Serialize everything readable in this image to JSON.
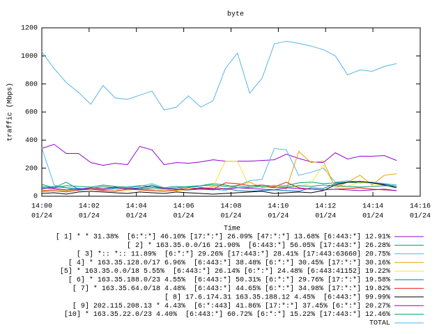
{
  "chart_data": {
    "type": "line",
    "title": "byte",
    "x_label": "Time",
    "y_label": "traffic (Mbps)",
    "xlim": [
      0,
      16
    ],
    "ylim": [
      0,
      1200
    ],
    "xticks": [
      {
        "value": 0,
        "label": "14:00"
      },
      {
        "value": 2,
        "label": "14:02"
      },
      {
        "value": 4,
        "label": "14:04"
      },
      {
        "value": 6,
        "label": "14:06"
      },
      {
        "value": 8,
        "label": "14:08"
      },
      {
        "value": 10,
        "label": "14:10"
      },
      {
        "value": 12,
        "label": "14:12"
      },
      {
        "value": 14,
        "label": "14:14"
      },
      {
        "value": 16,
        "label": "14:16"
      }
    ],
    "xtick_dates": [
      "01/24",
      "01/24",
      "01/24",
      "01/24",
      "01/24",
      "01/24",
      "01/24",
      "01/24",
      "01/24"
    ],
    "yticks": [
      0,
      200,
      400,
      600,
      800,
      1000,
      1200
    ],
    "grid": false,
    "x": [
      0,
      0.52,
      1.03,
      1.55,
      2.07,
      2.59,
      3.1,
      3.62,
      4.14,
      4.66,
      5.17,
      5.69,
      6.2,
      6.72,
      7.24,
      7.76,
      8.27,
      8.79,
      9.31,
      9.83,
      10.34,
      10.86,
      11.38,
      11.9,
      12.41,
      12.93,
      13.45,
      13.97,
      14.48,
      15.0
    ],
    "series": [
      {
        "name": "[ 1] * * 31.38%  [6:*:*] 46.10% [17:*:*] 26.09% [47:*:*] 13.68% [6:443:*] 12.91%",
        "color": "#9400d3",
        "values": [
          340,
          370,
          305,
          305,
          240,
          220,
          235,
          225,
          355,
          330,
          225,
          240,
          235,
          245,
          260,
          250,
          250,
          250,
          255,
          260,
          300,
          270,
          245,
          240,
          310,
          265,
          285,
          285,
          290,
          255
        ]
      },
      {
        "name": "[ 2] * 163.35.0.0/16 21.90%  [6:443:*] 56.05% [17:443:*] 26.28%",
        "color": "#009e73",
        "values": [
          85,
          60,
          100,
          50,
          55,
          70,
          60,
          60,
          55,
          80,
          55,
          60,
          70,
          75,
          90,
          80,
          60,
          60,
          80,
          70,
          75,
          95,
          100,
          90,
          95,
          100,
          95,
          100,
          90,
          80
        ]
      },
      {
        "name": "[ 3] *:: *:: 11.89%  [6:*:*] 29.26% [17:443:*] 28.41% [17:443:63660] 20.75%",
        "color": "#56b4e9",
        "values": [
          345,
          80,
          60,
          40,
          50,
          45,
          55,
          60,
          70,
          90,
          60,
          50,
          70,
          65,
          50,
          40,
          75,
          110,
          120,
          340,
          330,
          150,
          170,
          200,
          100,
          110,
          100,
          100,
          90,
          80
        ]
      },
      {
        "name": "[ 4] * 163.35.128.0/17 6.96%  [6:443:*] 38.48% [6:*:*] 30.45% [17:*:*] 30.16%",
        "color": "#e69f00",
        "values": [
          40,
          50,
          40,
          45,
          55,
          50,
          45,
          60,
          50,
          45,
          50,
          40,
          45,
          55,
          70,
          50,
          80,
          100,
          60,
          80,
          50,
          320,
          240,
          250,
          60,
          100,
          150,
          80,
          150,
          160
        ]
      },
      {
        "name": "[5] * 163.35.0.0/18 5.55%  [6:443:*] 26.14% [6:*:*] 24.48% [6:443:41152] 19.22%",
        "color": "#f0e442",
        "values": [
          30,
          40,
          35,
          50,
          60,
          50,
          45,
          40,
          55,
          50,
          40,
          35,
          50,
          60,
          65,
          250,
          250,
          60,
          65,
          75,
          60,
          70,
          90,
          220,
          60,
          70,
          100,
          90,
          80,
          70
        ]
      },
      {
        "name": "[ 6] * 163.35.188.0/23 4.55%  [6:443:*] 50.31% [6:*:*] 29.76% [17:*:*] 19.58%",
        "color": "#0072b2",
        "values": [
          50,
          70,
          60,
          55,
          50,
          45,
          60,
          55,
          50,
          60,
          55,
          50,
          45,
          50,
          45,
          55,
          40,
          35,
          40,
          45,
          40,
          35,
          60,
          55,
          90,
          100,
          105,
          95,
          85,
          70
        ]
      },
      {
        "name": "[ 7] * 163.35.64.0/18 4.48%  [6:443:*] 44.65% [6:*:*] 34.98% [17:*:*] 19.82%",
        "color": "#e51e10",
        "values": [
          35,
          40,
          30,
          45,
          50,
          40,
          35,
          50,
          45,
          40,
          35,
          45,
          60,
          55,
          50,
          95,
          90,
          75,
          80,
          65,
          100,
          60,
          50,
          45,
          50,
          55,
          60,
          50,
          45,
          40
        ]
      },
      {
        "name": "[ 8] 17.6.174.31 163.35.188.12 4.45%  [6:443:*] 99.99%",
        "color": "#000000",
        "values": [
          20,
          25,
          15,
          30,
          35,
          30,
          25,
          20,
          30,
          25,
          20,
          30,
          25,
          20,
          15,
          20,
          25,
          30,
          35,
          20,
          25,
          30,
          25,
          40,
          80,
          100,
          105,
          95,
          80,
          60
        ]
      },
      {
        "name": "[ 9] 202.115.208.13 * 4.43%  [6:*:443] 41.86% [17:*:*] 37.45% [6:*:*] 20.27%",
        "color": "#9400d3",
        "values": [
          60,
          55,
          45,
          50,
          60,
          55,
          65,
          50,
          60,
          70,
          55,
          50,
          45,
          60,
          55,
          50,
          60,
          55,
          50,
          45,
          60,
          55,
          50,
          45,
          50,
          45,
          40,
          45,
          50,
          40
        ]
      },
      {
        "name": "[10] * 163.35.22.0/23 4.40%  [6:443:*] 60.72% [6:*:*] 15.22% [17:443:*] 12.46%",
        "color": "#009e73",
        "values": [
          70,
          60,
          75,
          70,
          65,
          80,
          70,
          65,
          75,
          70,
          60,
          70,
          65,
          75,
          80,
          70,
          75,
          65,
          70,
          60,
          65,
          75,
          70,
          80,
          75,
          70,
          65,
          70,
          75,
          70
        ]
      },
      {
        "name": "TOTAL",
        "color": "#56b4e9",
        "values": [
          1030,
          910,
          810,
          740,
          655,
          790,
          700,
          690,
          720,
          750,
          615,
          635,
          715,
          635,
          680,
          910,
          1020,
          735,
          840,
          1085,
          1105,
          1090,
          1070,
          1045,
          1000,
          865,
          900,
          890,
          925,
          945
        ]
      }
    ]
  }
}
